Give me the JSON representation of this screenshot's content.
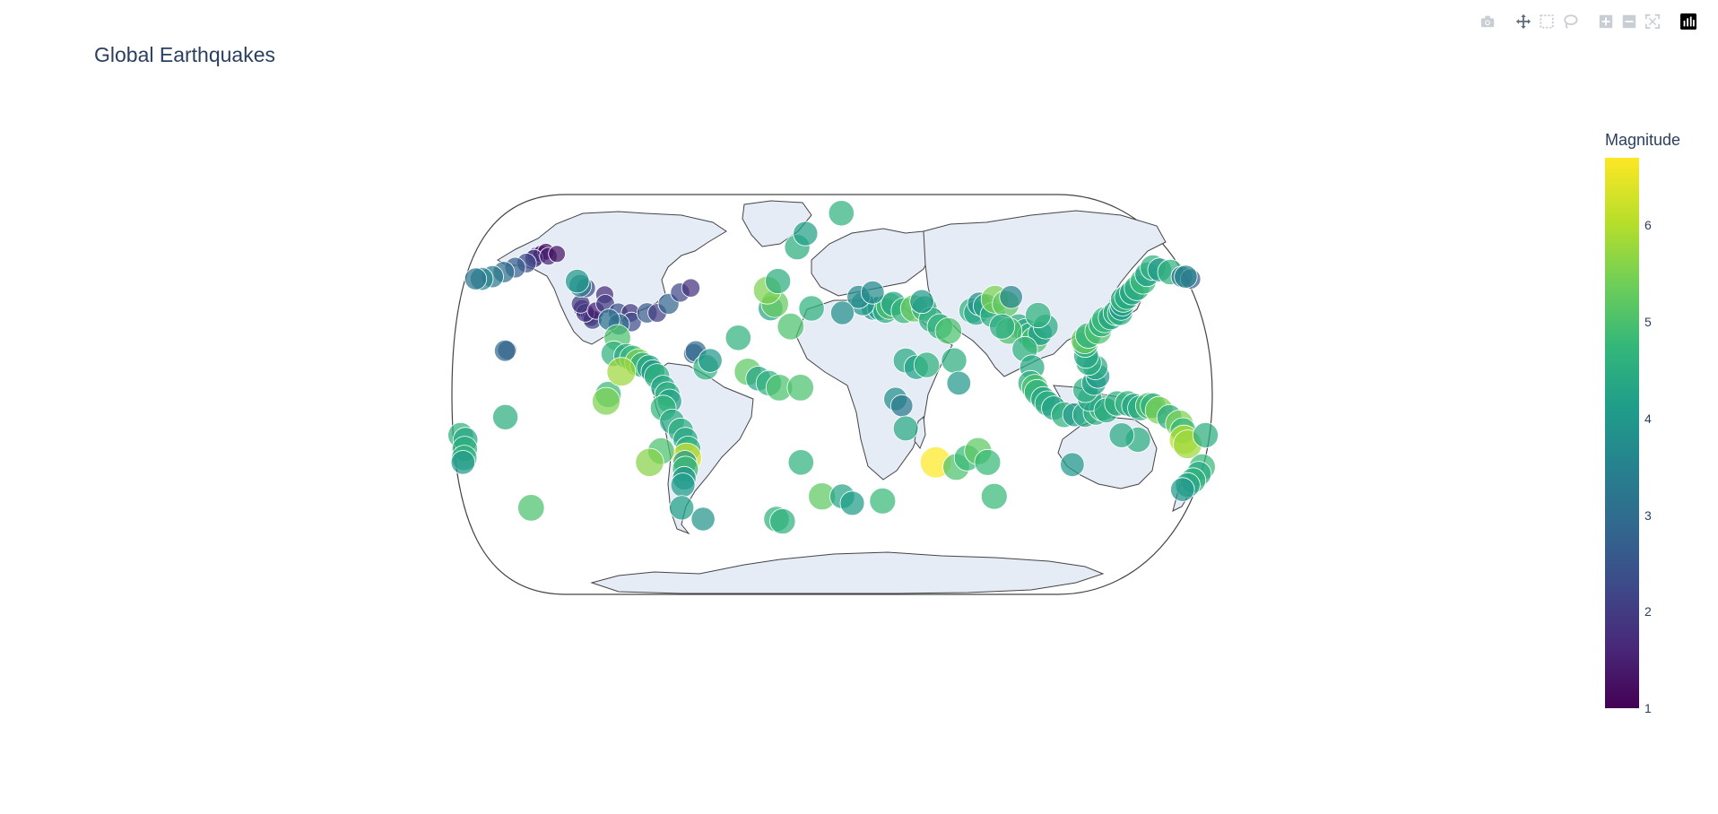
{
  "title": "Global Earthquakes",
  "modebar": {
    "icons": [
      "camera-icon",
      "pan-icon",
      "box-select-icon",
      "lasso-icon",
      "zoom-in-icon",
      "zoom-out-icon",
      "reset-icon",
      "plotly-logo-icon"
    ]
  },
  "colorbar": {
    "title": "Magnitude",
    "ticks": [
      "1",
      "2",
      "3",
      "4",
      "5",
      "6"
    ],
    "range": [
      1,
      6.7
    ],
    "colorscale": "viridis"
  },
  "chart_data": {
    "type": "scatter",
    "projection": "natural earth",
    "land_color": "#e5ecf6",
    "title": "Global Earthquakes",
    "color_label": "Magnitude",
    "points": [
      {
        "lon": -151,
        "lat": 61,
        "mag": 2.0
      },
      {
        "lon": -149,
        "lat": 62,
        "mag": 1.5
      },
      {
        "lon": -147,
        "lat": 63,
        "mag": 1.2
      },
      {
        "lon": -152,
        "lat": 60,
        "mag": 1.8
      },
      {
        "lon": -145,
        "lat": 61,
        "mag": 1.6
      },
      {
        "lon": -141,
        "lat": 62,
        "mag": 1.3
      },
      {
        "lon": -155,
        "lat": 58,
        "mag": 2.3
      },
      {
        "lon": -160,
        "lat": 56,
        "mag": 2.7
      },
      {
        "lon": -165,
        "lat": 54,
        "mag": 3.0
      },
      {
        "lon": -170,
        "lat": 52,
        "mag": 3.3
      },
      {
        "lon": -175,
        "lat": 51,
        "mag": 3.6
      },
      {
        "lon": -178,
        "lat": 51,
        "mag": 3.2
      },
      {
        "lon": -155,
        "lat": 19.5,
        "mag": 2.2
      },
      {
        "lon": -156,
        "lat": 19.3,
        "mag": 3.0
      },
      {
        "lon": -122,
        "lat": 38,
        "mag": 1.4
      },
      {
        "lon": -118,
        "lat": 35,
        "mag": 1.2
      },
      {
        "lon": -117,
        "lat": 34,
        "mag": 1.6
      },
      {
        "lon": -116,
        "lat": 33,
        "mag": 2.1
      },
      {
        "lon": -120,
        "lat": 36,
        "mag": 1.9
      },
      {
        "lon": -123,
        "lat": 40,
        "mag": 2.0
      },
      {
        "lon": -122,
        "lat": 47,
        "mag": 2.2
      },
      {
        "lon": -115,
        "lat": 37,
        "mag": 1.5
      },
      {
        "lon": -112,
        "lat": 44,
        "mag": 1.7
      },
      {
        "lon": -111,
        "lat": 40,
        "mag": 2.0
      },
      {
        "lon": -104,
        "lat": 36,
        "mag": 2.4
      },
      {
        "lon": -98,
        "lat": 36,
        "mag": 1.9
      },
      {
        "lon": -97,
        "lat": 32,
        "mag": 2.3
      },
      {
        "lon": -103,
        "lat": 31,
        "mag": 3.0
      },
      {
        "lon": -90,
        "lat": 36,
        "mag": 2.6
      },
      {
        "lon": -85,
        "lat": 36,
        "mag": 2.0
      },
      {
        "lon": -80,
        "lat": 40,
        "mag": 2.8
      },
      {
        "lon": -75,
        "lat": 45,
        "mag": 2.2
      },
      {
        "lon": -70,
        "lat": 47,
        "mag": 1.8
      },
      {
        "lon": -66,
        "lat": 18,
        "mag": 2.5
      },
      {
        "lon": -65,
        "lat": 19,
        "mag": 3.0
      },
      {
        "lon": -125,
        "lat": 48,
        "mag": 3.5
      },
      {
        "lon": -127,
        "lat": 50,
        "mag": 4.0
      },
      {
        "lon": -108,
        "lat": 33,
        "mag": 3.1
      },
      {
        "lon": -103,
        "lat": 25,
        "mag": 5.0
      },
      {
        "lon": -104,
        "lat": 18,
        "mag": 4.6
      },
      {
        "lon": -98,
        "lat": 17,
        "mag": 4.4
      },
      {
        "lon": -95,
        "lat": 16,
        "mag": 4.8
      },
      {
        "lon": -92,
        "lat": 14,
        "mag": 5.5
      },
      {
        "lon": -90,
        "lat": 13,
        "mag": 4.5
      },
      {
        "lon": -87,
        "lat": 12,
        "mag": 4.3
      },
      {
        "lon": -85,
        "lat": 10,
        "mag": 4.0
      },
      {
        "lon": -83,
        "lat": 8,
        "mag": 4.6
      },
      {
        "lon": -80,
        "lat": 3,
        "mag": 4.3
      },
      {
        "lon": -78,
        "lat": 0,
        "mag": 4.5
      },
      {
        "lon": -77,
        "lat": -3,
        "mag": 4.2
      },
      {
        "lon": -80,
        "lat": -6,
        "mag": 4.7
      },
      {
        "lon": -76,
        "lat": -12,
        "mag": 4.4
      },
      {
        "lon": -72,
        "lat": -16,
        "mag": 4.5
      },
      {
        "lon": -70,
        "lat": -20,
        "mag": 4.3
      },
      {
        "lon": -69,
        "lat": -24,
        "mag": 4.6
      },
      {
        "lon": -70,
        "lat": -28,
        "mag": 6.3
      },
      {
        "lon": -71,
        "lat": -30,
        "mag": 4.0
      },
      {
        "lon": -71,
        "lat": -33,
        "mag": 4.8
      },
      {
        "lon": -72,
        "lat": -37,
        "mag": 3.9
      },
      {
        "lon": -73,
        "lat": -40,
        "mag": 4.1
      },
      {
        "lon": -75,
        "lat": -50,
        "mag": 4.2
      },
      {
        "lon": -106,
        "lat": 0,
        "mag": 4.8
      },
      {
        "lon": -100,
        "lat": 10,
        "mag": 5.8
      },
      {
        "lon": -107,
        "lat": -3,
        "mag": 5.5
      },
      {
        "lon": -82,
        "lat": -25,
        "mag": 5.0
      },
      {
        "lon": -88,
        "lat": -30,
        "mag": 5.6
      },
      {
        "lon": -60,
        "lat": 12,
        "mag": 4.6
      },
      {
        "lon": -58,
        "lat": 15,
        "mag": 4.0
      },
      {
        "lon": -45,
        "lat": 25,
        "mag": 4.6
      },
      {
        "lon": -40,
        "lat": 10,
        "mag": 5.2
      },
      {
        "lon": -35,
        "lat": 7,
        "mag": 4.3
      },
      {
        "lon": -30,
        "lat": 5,
        "mag": 4.6
      },
      {
        "lon": -25,
        "lat": 3,
        "mag": 5.0
      },
      {
        "lon": -15,
        "lat": 3,
        "mag": 5.0
      },
      {
        "lon": -30,
        "lat": 38,
        "mag": 4.3
      },
      {
        "lon": -28,
        "lat": 40,
        "mag": 5.3
      },
      {
        "lon": -32,
        "lat": 46,
        "mag": 5.5
      },
      {
        "lon": -27,
        "lat": 50,
        "mag": 4.5
      },
      {
        "lon": -18,
        "lat": 65,
        "mag": 4.5
      },
      {
        "lon": -14,
        "lat": 71,
        "mag": 4.2
      },
      {
        "lon": 5,
        "lat": 80,
        "mag": 4.6
      },
      {
        "lon": -20,
        "lat": 30,
        "mag": 5.0
      },
      {
        "lon": -10,
        "lat": 38,
        "mag": 4.6
      },
      {
        "lon": -15,
        "lat": -30,
        "mag": 4.6
      },
      {
        "lon": -5,
        "lat": -45,
        "mag": 5.2
      },
      {
        "lon": 5,
        "lat": -45,
        "mag": 4.3
      },
      {
        "lon": 10,
        "lat": -48,
        "mag": 4.1
      },
      {
        "lon": 25,
        "lat": -47,
        "mag": 4.8
      },
      {
        "lon": -28,
        "lat": -55,
        "mag": 4.6
      },
      {
        "lon": -155,
        "lat": -10,
        "mag": 4.5
      },
      {
        "lon": -150,
        "lat": -50,
        "mag": 5.0
      },
      {
        "lon": 20,
        "lat": 38,
        "mag": 3.9
      },
      {
        "lon": 23,
        "lat": 38,
        "mag": 4.1
      },
      {
        "lon": 26,
        "lat": 37,
        "mag": 4.5
      },
      {
        "lon": 28,
        "lat": 39,
        "mag": 5.0
      },
      {
        "lon": 30,
        "lat": 40,
        "mag": 4.3
      },
      {
        "lon": 35,
        "lat": 37,
        "mag": 4.7
      },
      {
        "lon": 40,
        "lat": 38,
        "mag": 5.3
      },
      {
        "lon": 45,
        "lat": 38,
        "mag": 4.6
      },
      {
        "lon": 48,
        "lat": 33,
        "mag": 4.5
      },
      {
        "lon": 52,
        "lat": 30,
        "mag": 4.6
      },
      {
        "lon": 56,
        "lat": 28,
        "mag": 5.0
      },
      {
        "lon": 44,
        "lat": 41,
        "mag": 4.0
      },
      {
        "lon": 15,
        "lat": 40,
        "mag": 4.0
      },
      {
        "lon": 13,
        "lat": 43,
        "mag": 3.7
      },
      {
        "lon": 5,
        "lat": 36,
        "mag": 3.8
      },
      {
        "lon": 20,
        "lat": 45,
        "mag": 3.7
      },
      {
        "lon": 35,
        "lat": 15,
        "mag": 4.4
      },
      {
        "lon": 40,
        "lat": 12,
        "mag": 4.2
      },
      {
        "lon": 45,
        "lat": 13,
        "mag": 4.6
      },
      {
        "lon": 58,
        "lat": 15,
        "mag": 4.5
      },
      {
        "lon": 60,
        "lat": 5,
        "mag": 4.0
      },
      {
        "lon": 30,
        "lat": -2,
        "mag": 3.8
      },
      {
        "lon": 33,
        "lat": -5,
        "mag": 3.3
      },
      {
        "lon": 35,
        "lat": -15,
        "mag": 4.4
      },
      {
        "lon": 50,
        "lat": -30,
        "mag": 6.7
      },
      {
        "lon": 60,
        "lat": -32,
        "mag": 5.0
      },
      {
        "lon": 65,
        "lat": -28,
        "mag": 4.8
      },
      {
        "lon": 70,
        "lat": -25,
        "mag": 5.2
      },
      {
        "lon": 75,
        "lat": -30,
        "mag": 4.8
      },
      {
        "lon": 80,
        "lat": -45,
        "mag": 4.8
      },
      {
        "lon": 68,
        "lat": 37,
        "mag": 4.6
      },
      {
        "lon": 70,
        "lat": 36,
        "mag": 4.3
      },
      {
        "lon": 72,
        "lat": 40,
        "mag": 3.8
      },
      {
        "lon": 75,
        "lat": 39,
        "mag": 4.3
      },
      {
        "lon": 78,
        "lat": 35,
        "mag": 4.5
      },
      {
        "lon": 80,
        "lat": 42,
        "mag": 5.5
      },
      {
        "lon": 85,
        "lat": 40,
        "mag": 5.2
      },
      {
        "lon": 88,
        "lat": 43,
        "mag": 3.6
      },
      {
        "lon": 90,
        "lat": 30,
        "mag": 4.5
      },
      {
        "lon": 93,
        "lat": 28,
        "mag": 4.3
      },
      {
        "lon": 95,
        "lat": 26,
        "mag": 4.6
      },
      {
        "lon": 97,
        "lat": 24,
        "mag": 5.0
      },
      {
        "lon": 100,
        "lat": 27,
        "mag": 4.1
      },
      {
        "lon": 103,
        "lat": 30,
        "mag": 4.4
      },
      {
        "lon": 100,
        "lat": 35,
        "mag": 4.6
      },
      {
        "lon": 85,
        "lat": 28,
        "mag": 5.0
      },
      {
        "lon": 82,
        "lat": 30,
        "mag": 4.5
      },
      {
        "lon": 92,
        "lat": 20,
        "mag": 4.6
      },
      {
        "lon": 95,
        "lat": 12,
        "mag": 4.4
      },
      {
        "lon": 94,
        "lat": 5,
        "mag": 4.5
      },
      {
        "lon": 96,
        "lat": 3,
        "mag": 5.0
      },
      {
        "lon": 97,
        "lat": 1,
        "mag": 4.6
      },
      {
        "lon": 100,
        "lat": -2,
        "mag": 4.3
      },
      {
        "lon": 102,
        "lat": -4,
        "mag": 4.5
      },
      {
        "lon": 105,
        "lat": -6,
        "mag": 4.2
      },
      {
        "lon": 110,
        "lat": -9,
        "mag": 4.6
      },
      {
        "lon": 115,
        "lat": -9,
        "mag": 4.0
      },
      {
        "lon": 120,
        "lat": -9,
        "mag": 4.4
      },
      {
        "lon": 125,
        "lat": -8,
        "mag": 4.5
      },
      {
        "lon": 128,
        "lat": -6,
        "mag": 4.8
      },
      {
        "lon": 122,
        "lat": -2,
        "mag": 4.3
      },
      {
        "lon": 120,
        "lat": 2,
        "mag": 4.5
      },
      {
        "lon": 124,
        "lat": 5,
        "mag": 4.2
      },
      {
        "lon": 126,
        "lat": 8,
        "mag": 4.0
      },
      {
        "lon": 125,
        "lat": 12,
        "mag": 4.4
      },
      {
        "lon": 122,
        "lat": 14,
        "mag": 4.5
      },
      {
        "lon": 121,
        "lat": 17,
        "mag": 4.3
      },
      {
        "lon": 121,
        "lat": 22,
        "mag": 4.6
      },
      {
        "lon": 121,
        "lat": 24,
        "mag": 5.3
      },
      {
        "lon": 123,
        "lat": 26,
        "mag": 4.6
      },
      {
        "lon": 128,
        "lat": 28,
        "mag": 5.0
      },
      {
        "lon": 130,
        "lat": 31,
        "mag": 4.5
      },
      {
        "lon": 132,
        "lat": 33,
        "mag": 4.8
      },
      {
        "lon": 135,
        "lat": 34,
        "mag": 4.3
      },
      {
        "lon": 138,
        "lat": 36,
        "mag": 4.6
      },
      {
        "lon": 140,
        "lat": 36,
        "mag": 4.5
      },
      {
        "lon": 141,
        "lat": 38,
        "mag": 4.0
      },
      {
        "lon": 142,
        "lat": 40,
        "mag": 4.2
      },
      {
        "lon": 143,
        "lat": 42,
        "mag": 4.7
      },
      {
        "lon": 145,
        "lat": 43,
        "mag": 4.4
      },
      {
        "lon": 148,
        "lat": 45,
        "mag": 4.3
      },
      {
        "lon": 151,
        "lat": 47,
        "mag": 4.5
      },
      {
        "lon": 155,
        "lat": 50,
        "mag": 4.8
      },
      {
        "lon": 158,
        "lat": 53,
        "mag": 4.2
      },
      {
        "lon": 162,
        "lat": 56,
        "mag": 4.6
      },
      {
        "lon": 165,
        "lat": 55,
        "mag": 4.0
      },
      {
        "lon": 170,
        "lat": 54,
        "mag": 4.6
      },
      {
        "lon": 175,
        "lat": 52,
        "mag": 3.0
      },
      {
        "lon": 179,
        "lat": 51,
        "mag": 2.6
      },
      {
        "lon": 177,
        "lat": 52,
        "mag": 3.6
      },
      {
        "lon": 130,
        "lat": -7,
        "mag": 4.4
      },
      {
        "lon": 135,
        "lat": -4,
        "mag": 4.5
      },
      {
        "lon": 140,
        "lat": -4,
        "mag": 4.6
      },
      {
        "lon": 143,
        "lat": -5,
        "mag": 4.3
      },
      {
        "lon": 146,
        "lat": -6,
        "mag": 4.5
      },
      {
        "lon": 150,
        "lat": -5,
        "mag": 5.0
      },
      {
        "lon": 152,
        "lat": -5,
        "mag": 4.6
      },
      {
        "lon": 155,
        "lat": -7,
        "mag": 5.5
      },
      {
        "lon": 160,
        "lat": -10,
        "mag": 4.4
      },
      {
        "lon": 165,
        "lat": -13,
        "mag": 5.5
      },
      {
        "lon": 167,
        "lat": -16,
        "mag": 4.7
      },
      {
        "lon": 168,
        "lat": -20,
        "mag": 6.0
      },
      {
        "lon": 170,
        "lat": -22,
        "mag": 5.8
      },
      {
        "lon": 178,
        "lat": -18,
        "mag": 4.5
      },
      {
        "lon": -177,
        "lat": -18,
        "mag": 4.6
      },
      {
        "lon": -175,
        "lat": -20,
        "mag": 4.3
      },
      {
        "lon": -176,
        "lat": -24,
        "mag": 4.5
      },
      {
        "lon": -177,
        "lat": -28,
        "mag": 4.6
      },
      {
        "lon": -178,
        "lat": -30,
        "mag": 4.0
      },
      {
        "lon": 179,
        "lat": -32,
        "mag": 4.8
      },
      {
        "lon": 178,
        "lat": -35,
        "mag": 4.4
      },
      {
        "lon": 176,
        "lat": -38,
        "mag": 4.6
      },
      {
        "lon": 174,
        "lat": -40,
        "mag": 4.3
      },
      {
        "lon": 172,
        "lat": -42,
        "mag": 4.0
      },
      {
        "lon": 116,
        "lat": -31,
        "mag": 4.0
      },
      {
        "lon": 146,
        "lat": -20,
        "mag": 4.5
      },
      {
        "lon": 138,
        "lat": -18,
        "mag": 4.4
      },
      {
        "lon": -25,
        "lat": -56,
        "mag": 4.6
      },
      {
        "lon": -65,
        "lat": -55,
        "mag": 3.9
      }
    ]
  }
}
